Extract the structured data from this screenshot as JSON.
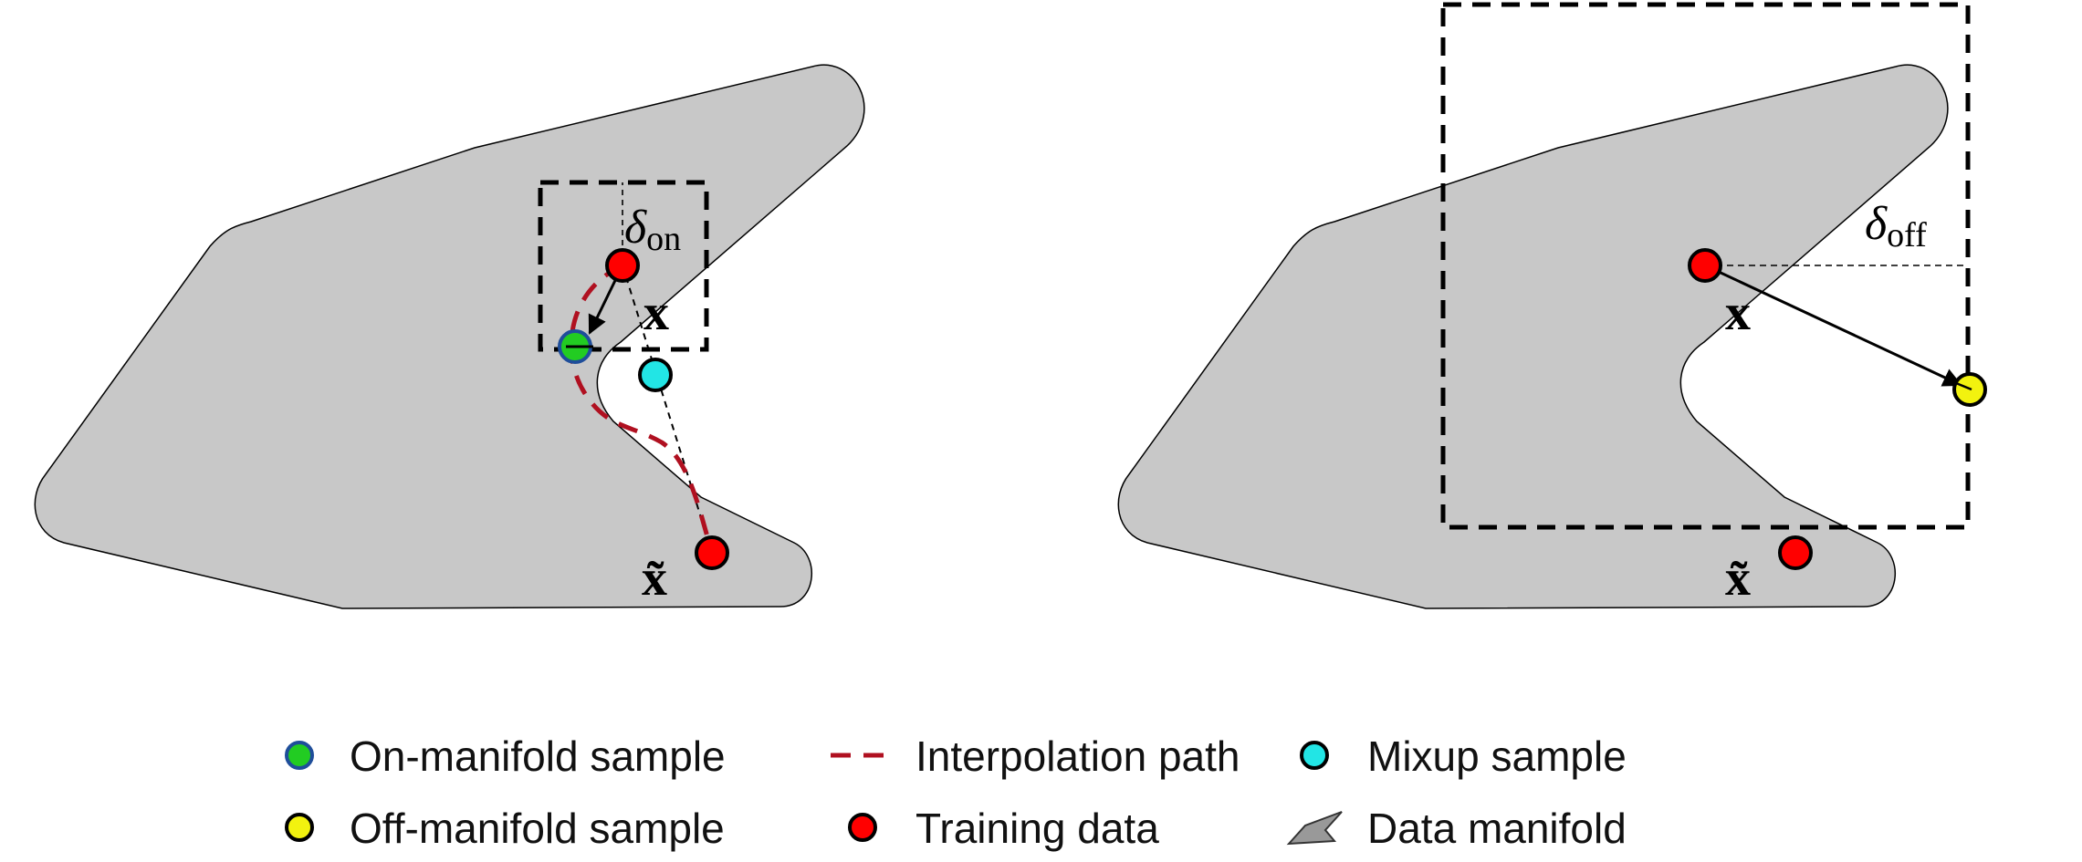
{
  "left_panel": {
    "label_delta": "δ",
    "label_delta_sub": "on",
    "label_x": "x",
    "label_x_tilde": "x̃"
  },
  "right_panel": {
    "label_delta": "δ",
    "label_delta_sub": "off",
    "label_x": "x",
    "label_x_tilde": "x̃"
  },
  "legend": {
    "on_manifold": "On-manifold sample",
    "interpolation": "Interpolation path",
    "mixup": "Mixup sample",
    "off_manifold": "Off-manifold sample",
    "training": "Training data",
    "manifold": "Data manifold"
  },
  "colors": {
    "manifold_fill": "#c8c8c8",
    "training": "#ff0000",
    "on_manifold": "#22cc22",
    "on_manifold_border": "#1f4e9a",
    "mixup": "#22e5e5",
    "off_manifold": "#f2f20f",
    "interpolation": "#b01020"
  },
  "icons": {
    "manifold": "manifold-shape-icon"
  }
}
